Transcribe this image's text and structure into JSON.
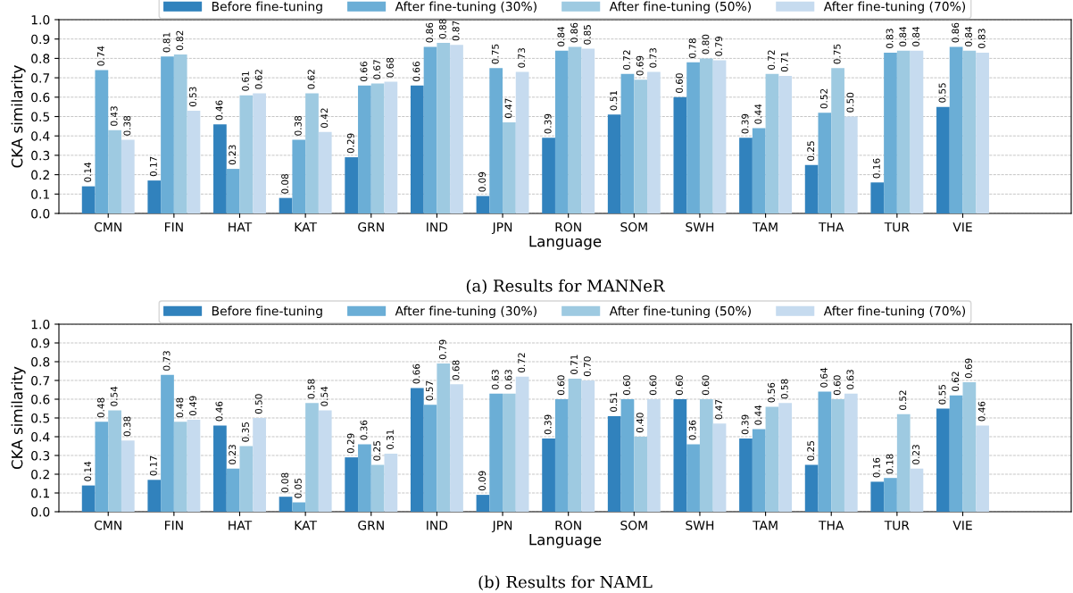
{
  "chart_data": [
    {
      "type": "bar",
      "xlabel": "Language",
      "ylabel": "CKA similarity",
      "annotations": [
        "(a) Results for MANNeR"
      ],
      "categories": [
        "CMN",
        "FIN",
        "HAT",
        "KAT",
        "GRN",
        "IND",
        "JPN",
        "RON",
        "SOM",
        "SWH",
        "TAM",
        "THA",
        "TUR",
        "VIE"
      ],
      "ylim": [
        0,
        1
      ],
      "yticks": [
        {
          "value": 0,
          "label": "0.0"
        },
        {
          "value": 0.1,
          "label": "0.1"
        },
        {
          "value": 0.2,
          "label": "0.2"
        },
        {
          "value": 0.3,
          "label": "0.3"
        },
        {
          "value": 0.4,
          "label": "0.4"
        },
        {
          "value": 0.5,
          "label": "0.5"
        },
        {
          "value": 0.6,
          "label": "0.6"
        },
        {
          "value": 0.7,
          "label": "0.7"
        },
        {
          "value": 0.8,
          "label": "0.8"
        },
        {
          "value": 0.9,
          "label": "0.9"
        },
        {
          "value": 1,
          "label": "1.0"
        }
      ],
      "grid": "y",
      "legend": "top",
      "series": [
        {
          "name": "Before fine-tuning",
          "color": "#3182bd",
          "values": [
            0.14,
            0.17,
            0.46,
            0.08,
            0.29,
            0.66,
            0.09,
            0.39,
            0.51,
            0.6,
            0.39,
            0.25,
            0.16,
            0.55
          ],
          "value_labels": [
            "0.14",
            "0.17",
            "0.46",
            "0.08",
            "0.29",
            "0.66",
            "0.09",
            "0.39",
            "0.51",
            "0.60",
            "0.39",
            "0.25",
            "0.16",
            "0.55"
          ]
        },
        {
          "name": "After fine-tuning (30%)",
          "color": "#6baed6",
          "values": [
            0.74,
            0.81,
            0.23,
            0.38,
            0.66,
            0.86,
            0.75,
            0.84,
            0.72,
            0.78,
            0.44,
            0.52,
            0.83,
            0.86
          ],
          "value_labels": [
            "0.74",
            "0.81",
            "0.23",
            "0.38",
            "0.66",
            "0.86",
            "0.75",
            "0.84",
            "0.72",
            "0.78",
            "0.44",
            "0.52",
            "0.83",
            "0.86"
          ]
        },
        {
          "name": "After fine-tuning (50%)",
          "color": "#9ecae1",
          "values": [
            0.43,
            0.82,
            0.61,
            0.62,
            0.67,
            0.88,
            0.47,
            0.86,
            0.69,
            0.8,
            0.72,
            0.75,
            0.84,
            0.84
          ],
          "value_labels": [
            "0.43",
            "0.82",
            "0.61",
            "0.62",
            "0.67",
            "0.88",
            "0.47",
            "0.86",
            "0.69",
            "0.80",
            "0.72",
            "0.75",
            "0.84",
            "0.84"
          ]
        },
        {
          "name": "After fine-tuning (70%)",
          "color": "#c6dbef",
          "values": [
            0.38,
            0.53,
            0.62,
            0.42,
            0.68,
            0.87,
            0.73,
            0.85,
            0.73,
            0.79,
            0.71,
            0.5,
            0.84,
            0.83
          ],
          "value_labels": [
            "0.38",
            "0.53",
            "0.62",
            "0.42",
            "0.68",
            "0.87",
            "0.73",
            "0.85",
            "0.73",
            "0.79",
            "0.71",
            "0.50",
            "0.84",
            "0.83"
          ]
        }
      ]
    },
    {
      "type": "bar",
      "xlabel": "Language",
      "ylabel": "CKA similarity",
      "annotations": [
        "(b) Results for NAML"
      ],
      "categories": [
        "CMN",
        "FIN",
        "HAT",
        "KAT",
        "GRN",
        "IND",
        "JPN",
        "RON",
        "SOM",
        "SWH",
        "TAM",
        "THA",
        "TUR",
        "VIE"
      ],
      "ylim": [
        0,
        1
      ],
      "yticks": [
        {
          "value": 0,
          "label": "0.0"
        },
        {
          "value": 0.1,
          "label": "0.1"
        },
        {
          "value": 0.2,
          "label": "0.2"
        },
        {
          "value": 0.3,
          "label": "0.3"
        },
        {
          "value": 0.4,
          "label": "0.4"
        },
        {
          "value": 0.5,
          "label": "0.5"
        },
        {
          "value": 0.6,
          "label": "0.6"
        },
        {
          "value": 0.7,
          "label": "0.7"
        },
        {
          "value": 0.8,
          "label": "0.8"
        },
        {
          "value": 0.9,
          "label": "0.9"
        },
        {
          "value": 1,
          "label": "1.0"
        }
      ],
      "grid": "y",
      "legend": "top",
      "series": [
        {
          "name": "Before fine-tuning",
          "color": "#3182bd",
          "values": [
            0.14,
            0.17,
            0.46,
            0.08,
            0.29,
            0.66,
            0.09,
            0.39,
            0.51,
            0.6,
            0.39,
            0.25,
            0.16,
            0.55
          ],
          "value_labels": [
            "0.14",
            "0.17",
            "0.46",
            "0.08",
            "0.29",
            "0.66",
            "0.09",
            "0.39",
            "0.51",
            "0.60",
            "0.39",
            "0.25",
            "0.16",
            "0.55"
          ]
        },
        {
          "name": "After fine-tuning (30%)",
          "color": "#6baed6",
          "values": [
            0.48,
            0.73,
            0.23,
            0.05,
            0.36,
            0.57,
            0.63,
            0.6,
            0.6,
            0.36,
            0.44,
            0.64,
            0.18,
            0.62
          ],
          "value_labels": [
            "0.48",
            "0.73",
            "0.23",
            "0.05",
            "0.36",
            "0.57",
            "0.63",
            "0.60",
            "0.60",
            "0.36",
            "0.44",
            "0.64",
            "0.18",
            "0.62"
          ]
        },
        {
          "name": "After fine-tuning (50%)",
          "color": "#9ecae1",
          "values": [
            0.54,
            0.48,
            0.35,
            0.58,
            0.25,
            0.79,
            0.63,
            0.71,
            0.4,
            0.6,
            0.56,
            0.6,
            0.52,
            0.69
          ],
          "value_labels": [
            "0.54",
            "0.48",
            "0.35",
            "0.58",
            "0.25",
            "0.79",
            "0.63",
            "0.71",
            "0.40",
            "0.60",
            "0.56",
            "0.60",
            "0.52",
            "0.69"
          ]
        },
        {
          "name": "After fine-tuning (70%)",
          "color": "#c6dbef",
          "values": [
            0.38,
            0.49,
            0.5,
            0.54,
            0.31,
            0.68,
            0.72,
            0.7,
            0.6,
            0.47,
            0.58,
            0.63,
            0.23,
            0.46
          ],
          "value_labels": [
            "0.38",
            "0.49",
            "0.50",
            "0.54",
            "0.31",
            "0.68",
            "0.72",
            "0.70",
            "0.60",
            "0.47",
            "0.58",
            "0.63",
            "0.23",
            "0.46"
          ]
        }
      ]
    }
  ]
}
